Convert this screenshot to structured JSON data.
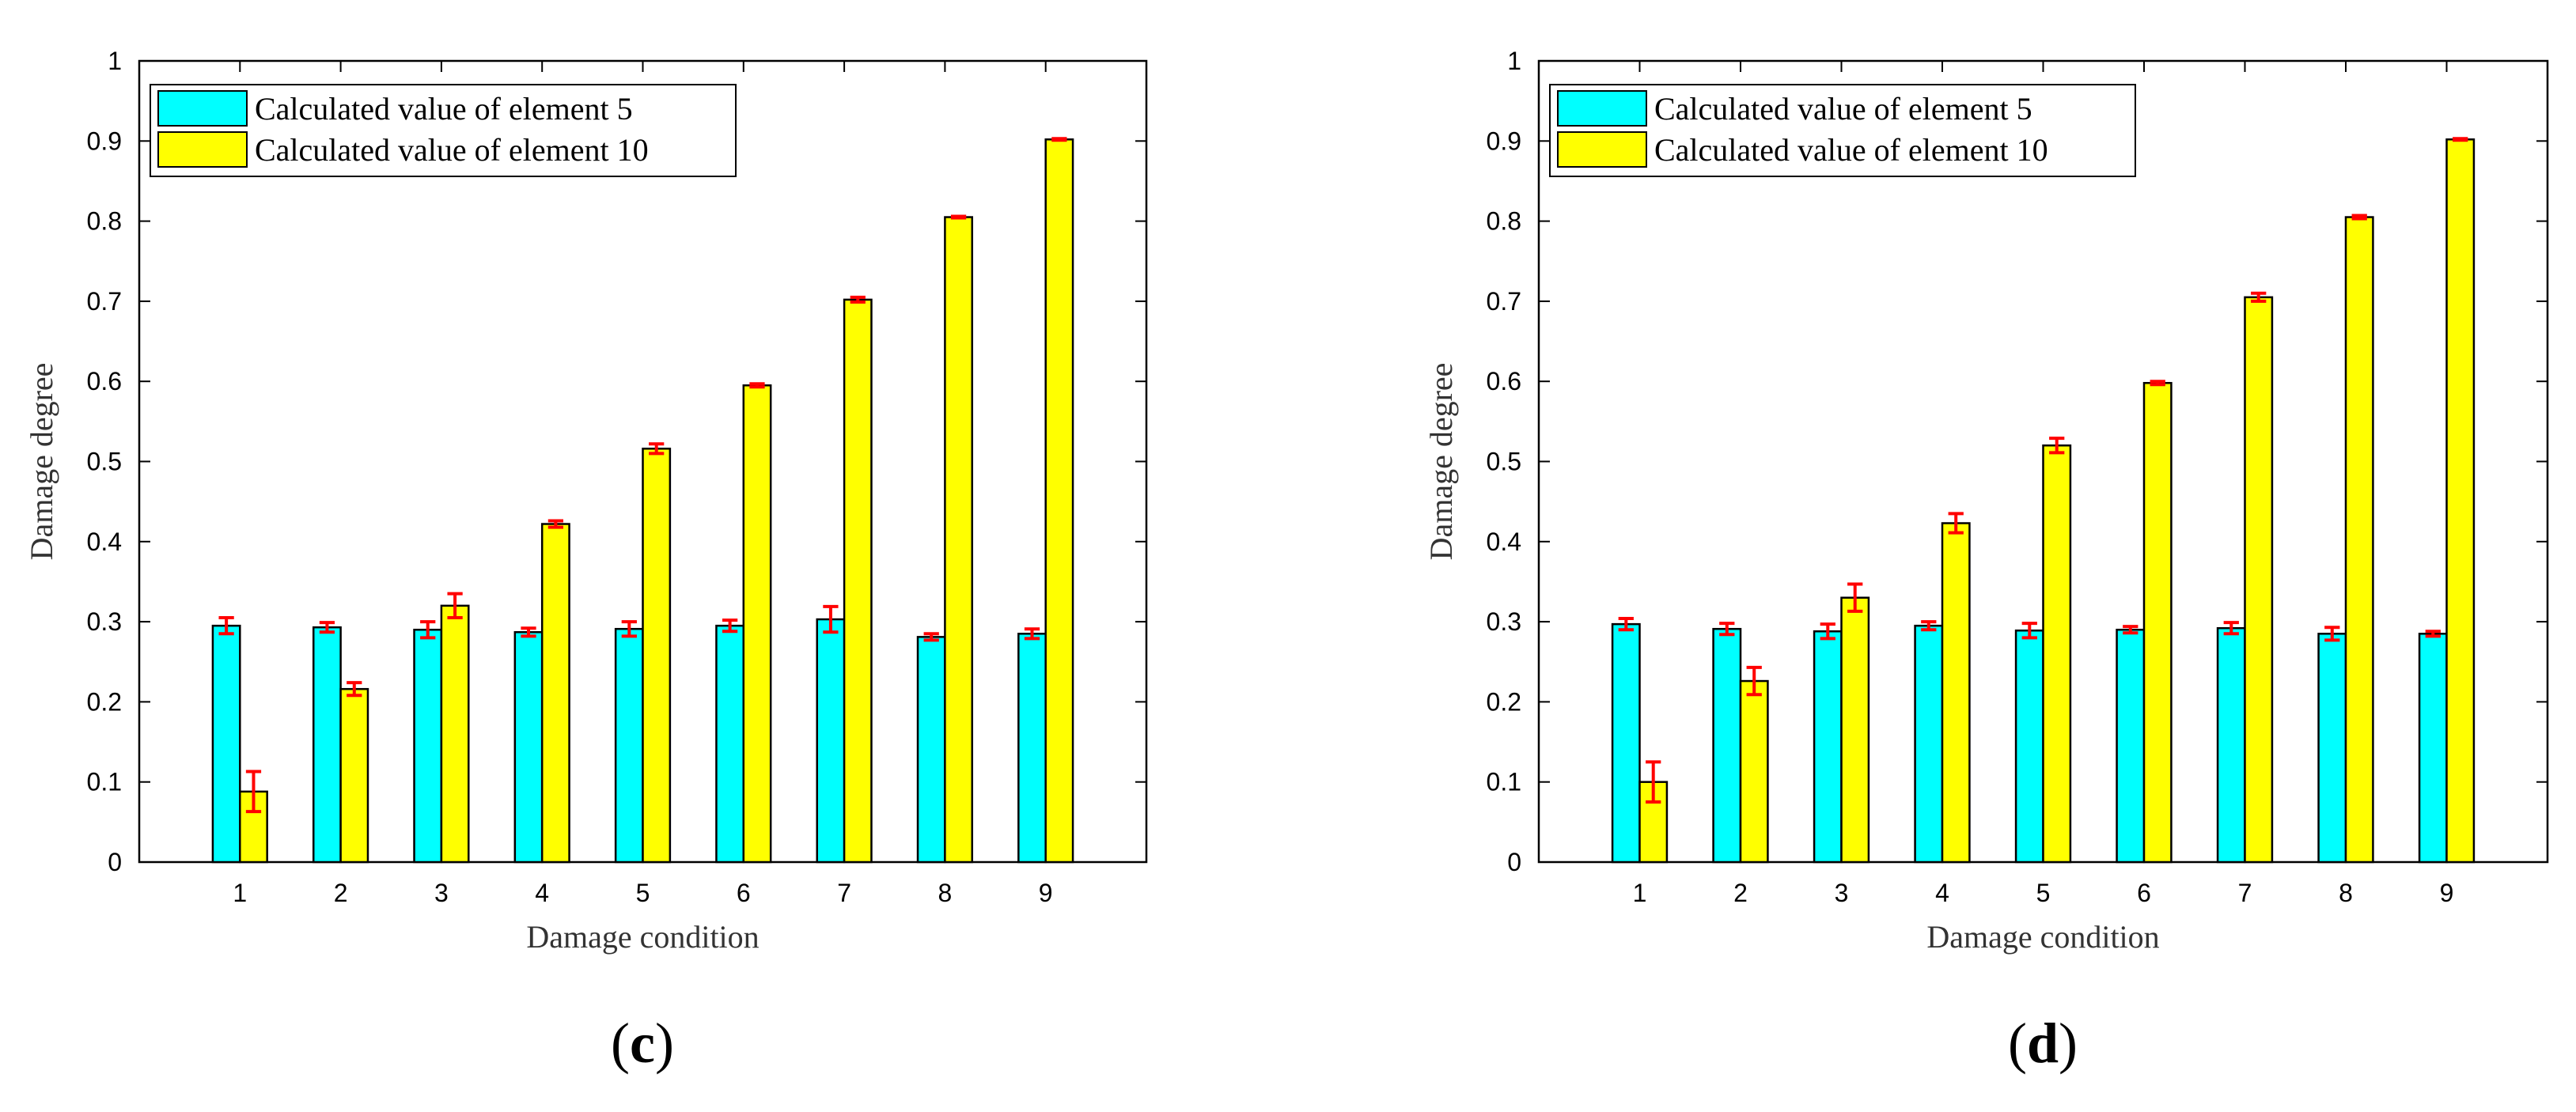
{
  "chart_data": [
    {
      "type": "bar",
      "panel_label": "c",
      "xlabel": "Damage condition",
      "ylabel": "Damage degree",
      "ylim": [
        0,
        1
      ],
      "yticks": [
        "0",
        "0.1",
        "0.2",
        "0.3",
        "0.4",
        "0.5",
        "0.6",
        "0.7",
        "0.8",
        "0.9",
        "1"
      ],
      "categories": [
        "1",
        "2",
        "3",
        "4",
        "5",
        "6",
        "7",
        "8",
        "9"
      ],
      "legend_position": "top-left",
      "series": [
        {
          "name": "Calculated value of element 5",
          "color": "#00FFFF",
          "values": [
            0.295,
            0.293,
            0.29,
            0.287,
            0.291,
            0.295,
            0.303,
            0.281,
            0.285
          ],
          "errors": [
            0.01,
            0.006,
            0.01,
            0.005,
            0.009,
            0.007,
            0.016,
            0.004,
            0.006
          ]
        },
        {
          "name": "Calculated value of element 10",
          "color": "#FFFF00",
          "values": [
            0.088,
            0.216,
            0.32,
            0.422,
            0.516,
            0.595,
            0.702,
            0.805,
            0.902
          ],
          "errors": [
            0.025,
            0.008,
            0.015,
            0.004,
            0.006,
            0.002,
            0.003,
            0.001,
            0.001
          ]
        }
      ],
      "error_color": "#FF0000"
    },
    {
      "type": "bar",
      "panel_label": "d",
      "xlabel": "Damage condition",
      "ylabel": "Damage degree",
      "ylim": [
        0,
        1
      ],
      "yticks": [
        "0",
        "0.1",
        "0.2",
        "0.3",
        "0.4",
        "0.5",
        "0.6",
        "0.7",
        "0.8",
        "0.9",
        "1"
      ],
      "categories": [
        "1",
        "2",
        "3",
        "4",
        "5",
        "6",
        "7",
        "8",
        "9"
      ],
      "legend_position": "top-left",
      "series": [
        {
          "name": "Calculated value of element 5",
          "color": "#00FFFF",
          "values": [
            0.297,
            0.291,
            0.288,
            0.295,
            0.289,
            0.29,
            0.292,
            0.285,
            0.285
          ],
          "errors": [
            0.007,
            0.007,
            0.009,
            0.005,
            0.009,
            0.004,
            0.007,
            0.008,
            0.003
          ]
        },
        {
          "name": "Calculated value of element 10",
          "color": "#FFFF00",
          "values": [
            0.1,
            0.226,
            0.33,
            0.423,
            0.52,
            0.598,
            0.705,
            0.805,
            0.902
          ],
          "errors": [
            0.025,
            0.017,
            0.017,
            0.012,
            0.009,
            0.002,
            0.005,
            0.002,
            0.001
          ]
        }
      ],
      "error_color": "#FF0000"
    }
  ]
}
